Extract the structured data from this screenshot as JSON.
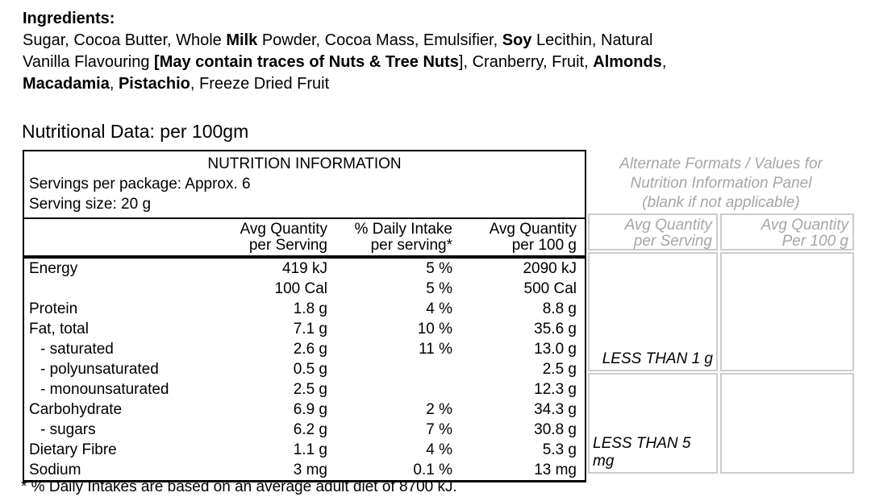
{
  "colors": {
    "muted_text": "#a6a6a6",
    "muted_border": "#cccccc",
    "text": "#000000",
    "background": "#ffffff"
  },
  "ingredients": {
    "heading": "Ingredients:",
    "lines": [
      [
        {
          "t": "Sugar, Cocoa Butter, Whole ",
          "b": false
        },
        {
          "t": "Milk",
          "b": true
        },
        {
          "t": " Powder, Cocoa Mass, Emulsifier, ",
          "b": false
        },
        {
          "t": "Soy",
          "b": true
        },
        {
          "t": " Lecithin, Natural",
          "b": false
        }
      ],
      [
        {
          "t": "Vanilla Flavouring ",
          "b": false
        },
        {
          "t": "[May contain traces of Nuts & Tree Nuts",
          "b": true
        },
        {
          "t": "], Cranberry, Fruit, ",
          "b": false
        },
        {
          "t": "Almonds",
          "b": true
        },
        {
          "t": ",",
          "b": false
        }
      ],
      [
        {
          "t": "Macadamia",
          "b": true
        },
        {
          "t": ", ",
          "b": false
        },
        {
          "t": "Pistachio",
          "b": true
        },
        {
          "t": ", Freeze Dried Fruit",
          "b": false
        }
      ]
    ]
  },
  "section_heading": "Nutritional Data: per 100gm",
  "nutrition_table": {
    "title": "NUTRITION INFORMATION",
    "servings_per_package": "Servings per package: Approx. 6",
    "serving_size": "Serving size: 20 g",
    "col_headers": [
      {
        "line1": "Avg Quantity",
        "line2": "per Serving"
      },
      {
        "line1": "% Daily Intake",
        "line2": "per serving*"
      },
      {
        "line1": "Avg Quantity",
        "line2": "per 100 g"
      }
    ],
    "rows": [
      {
        "label": "Energy",
        "indent": false,
        "per_serving": "419 kJ",
        "daily_intake": "5 %",
        "per_100g": "2090 kJ"
      },
      {
        "label": "",
        "indent": false,
        "per_serving": "100 Cal",
        "daily_intake": "5 %",
        "per_100g": "500 Cal"
      },
      {
        "label": "Protein",
        "indent": false,
        "per_serving": "1.8 g",
        "daily_intake": "4 %",
        "per_100g": "8.8 g"
      },
      {
        "label": "Fat, total",
        "indent": false,
        "per_serving": "7.1 g",
        "daily_intake": "10 %",
        "per_100g": "35.6 g"
      },
      {
        "label": "- saturated",
        "indent": true,
        "per_serving": "2.6 g",
        "daily_intake": "11 %",
        "per_100g": "13.0 g"
      },
      {
        "label": "- polyunsaturated",
        "indent": true,
        "per_serving": "0.5 g",
        "daily_intake": "",
        "per_100g": "2.5 g"
      },
      {
        "label": "- monounsaturated",
        "indent": true,
        "per_serving": "2.5 g",
        "daily_intake": "",
        "per_100g": "12.3 g"
      },
      {
        "label": "Carbohydrate",
        "indent": false,
        "per_serving": "6.9 g",
        "daily_intake": "2 %",
        "per_100g": "34.3 g"
      },
      {
        "label": "- sugars",
        "indent": true,
        "per_serving": "6.2 g",
        "daily_intake": "7 %",
        "per_100g": "30.8 g"
      },
      {
        "label": "Dietary Fibre",
        "indent": false,
        "per_serving": "1.1 g",
        "daily_intake": "4 %",
        "per_100g": "5.3 g"
      },
      {
        "label": "Sodium",
        "indent": false,
        "per_serving": "3 mg",
        "daily_intake": "0.1 %",
        "per_100g": "13 mg"
      }
    ],
    "footnote": "* % Daily Intakes are based on an average adult diet of 8700 kJ."
  },
  "alternate_panel": {
    "note_lines": [
      "Alternate Formats / Values for",
      "Nutrition Information Panel",
      "(blank if not applicable)"
    ],
    "col_headers": [
      {
        "line1": "Avg Quantity",
        "line2": "per Serving"
      },
      {
        "line1": "Avg Quantity",
        "line2": "Per 100 g"
      }
    ],
    "body_rows": [
      {
        "cells": [
          "LESS THAN 1 g",
          ""
        ]
      },
      {
        "cells": [
          "LESS THAN 5 mg",
          ""
        ]
      }
    ]
  }
}
